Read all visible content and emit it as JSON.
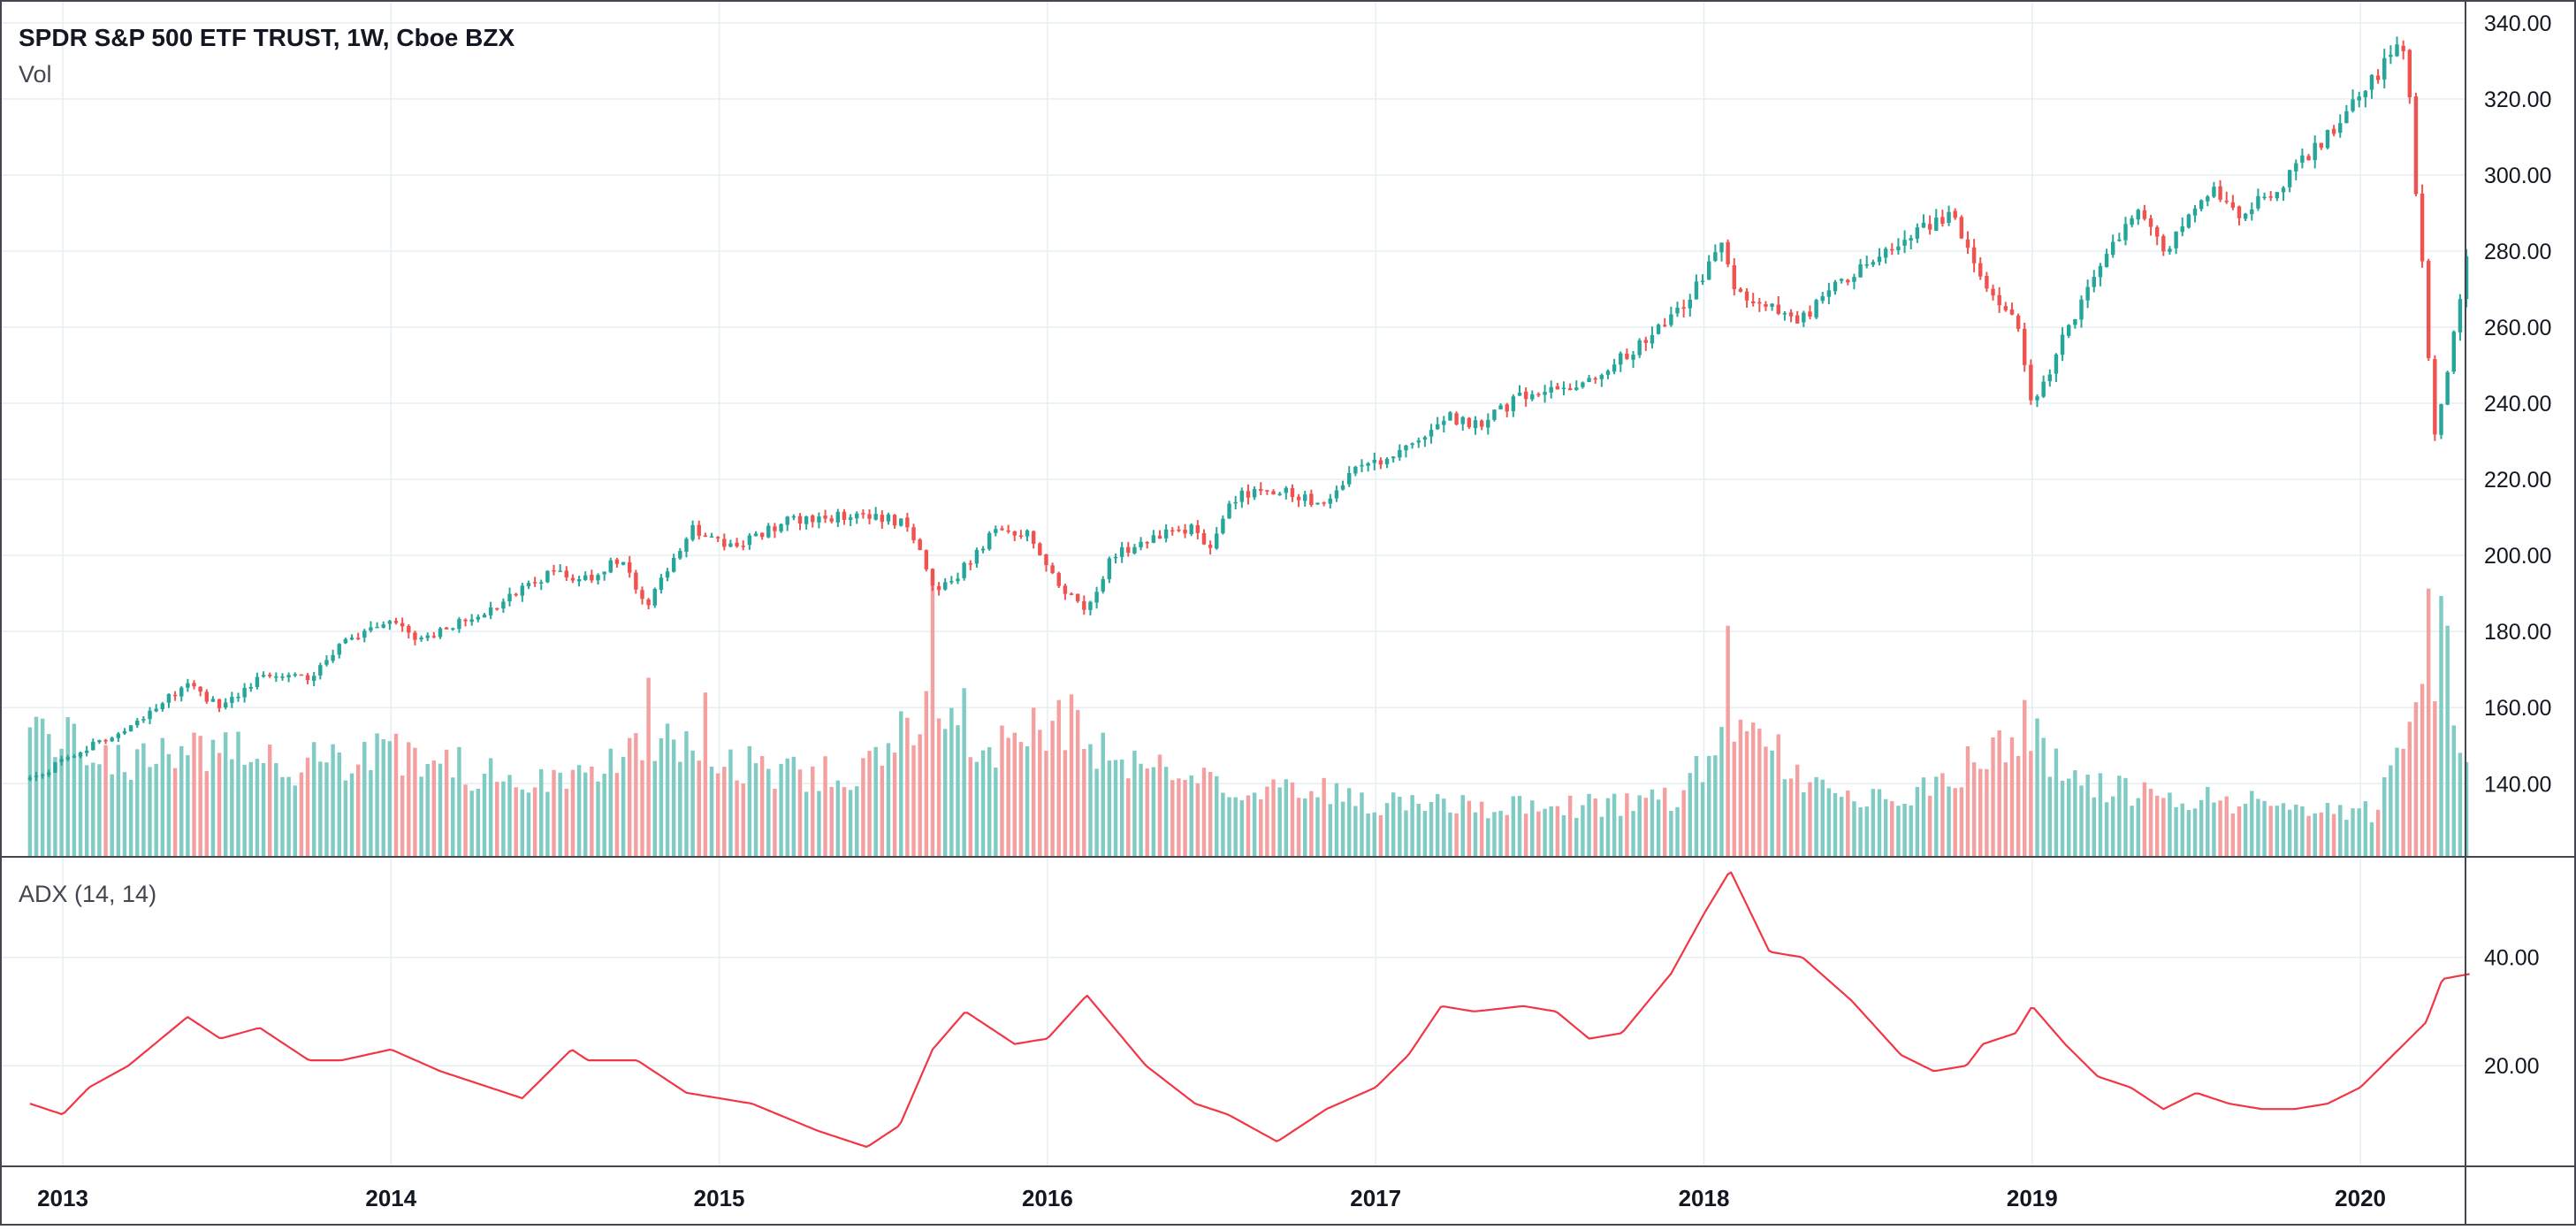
{
  "header": {
    "title": "SPDR S&P 500 ETF TRUST, 1W, Cboe BZX",
    "volume_label": "Vol",
    "indicator_label": "ADX (14, 14)"
  },
  "colors": {
    "up": "#26a69a",
    "down": "#ef5350",
    "vol_up": "#80cbc4",
    "vol_down": "#f4a0a0",
    "adx_line": "#f23645",
    "grid": "#e6eef2",
    "border": "#434651"
  },
  "chart_data": [
    {
      "type": "candlestick",
      "title": "SPDR S&P 500 ETF TRUST, 1W, Cboe BZX",
      "interval": "1W",
      "price_axis": {
        "position": "right",
        "ticks": [
          140,
          160,
          180,
          200,
          220,
          240,
          260,
          280,
          300,
          320,
          340
        ],
        "ylim": [
          121,
          346
        ]
      },
      "time_axis": {
        "ticks": [
          "2013",
          "2014",
          "2015",
          "2016",
          "2017",
          "2018",
          "2019",
          "2020"
        ]
      },
      "grid": true,
      "start_year": 2012.9,
      "weeks_per_year": 52,
      "price_path": [
        [
          2012.9,
          141
        ],
        [
          2013.0,
          146
        ],
        [
          2013.2,
          155
        ],
        [
          2013.38,
          166
        ],
        [
          2013.48,
          160
        ],
        [
          2013.6,
          168
        ],
        [
          2013.75,
          168
        ],
        [
          2013.85,
          177
        ],
        [
          2014.0,
          183
        ],
        [
          2014.08,
          177
        ],
        [
          2014.3,
          186
        ],
        [
          2014.5,
          196
        ],
        [
          2014.58,
          193
        ],
        [
          2014.7,
          199
        ],
        [
          2014.78,
          187
        ],
        [
          2014.92,
          207
        ],
        [
          2015.05,
          202
        ],
        [
          2015.2,
          209
        ],
        [
          2015.45,
          211
        ],
        [
          2015.58,
          208
        ],
        [
          2015.65,
          191
        ],
        [
          2015.72,
          194
        ],
        [
          2015.85,
          208
        ],
        [
          2015.95,
          205
        ],
        [
          2016.05,
          190
        ],
        [
          2016.12,
          186
        ],
        [
          2016.2,
          200
        ],
        [
          2016.35,
          206
        ],
        [
          2016.45,
          207
        ],
        [
          2016.5,
          201
        ],
        [
          2016.55,
          214
        ],
        [
          2016.65,
          218
        ],
        [
          2016.75,
          216
        ],
        [
          2016.85,
          213
        ],
        [
          2016.92,
          222
        ],
        [
          2017.1,
          228
        ],
        [
          2017.2,
          237
        ],
        [
          2017.3,
          234
        ],
        [
          2017.45,
          242
        ],
        [
          2017.55,
          245
        ],
        [
          2017.62,
          244
        ],
        [
          2017.8,
          255
        ],
        [
          2017.95,
          266
        ],
        [
          2018.05,
          283
        ],
        [
          2018.1,
          268
        ],
        [
          2018.2,
          265
        ],
        [
          2018.3,
          262
        ],
        [
          2018.42,
          272
        ],
        [
          2018.6,
          282
        ],
        [
          2018.75,
          290
        ],
        [
          2018.85,
          271
        ],
        [
          2018.95,
          262
        ],
        [
          2019.0,
          238
        ],
        [
          2019.1,
          258
        ],
        [
          2019.2,
          275
        ],
        [
          2019.32,
          292
        ],
        [
          2019.4,
          280
        ],
        [
          2019.55,
          298
        ],
        [
          2019.62,
          289
        ],
        [
          2019.75,
          297
        ],
        [
          2019.92,
          312
        ],
        [
          2020.05,
          326
        ],
        [
          2020.11,
          336
        ],
        [
          2020.14,
          330
        ],
        [
          2020.17,
          296
        ],
        [
          2020.2,
          264
        ],
        [
          2020.22,
          230
        ],
        [
          2020.27,
          250
        ],
        [
          2020.32,
          278
        ],
        [
          2020.34,
          284
        ]
      ],
      "volume_profile": [
        [
          2012.9,
          0.34
        ],
        [
          2013.2,
          0.24
        ],
        [
          2013.45,
          0.28
        ],
        [
          2013.7,
          0.25
        ],
        [
          2014.0,
          0.27
        ],
        [
          2014.3,
          0.22
        ],
        [
          2014.6,
          0.21
        ],
        [
          2014.8,
          0.3
        ],
        [
          2014.95,
          0.26
        ],
        [
          2015.2,
          0.22
        ],
        [
          2015.5,
          0.24
        ],
        [
          2015.65,
          0.45
        ],
        [
          2015.85,
          0.28
        ],
        [
          2016.05,
          0.37
        ],
        [
          2016.2,
          0.26
        ],
        [
          2016.5,
          0.2
        ],
        [
          2016.8,
          0.18
        ],
        [
          2017.0,
          0.14
        ],
        [
          2017.5,
          0.13
        ],
        [
          2017.9,
          0.15
        ],
        [
          2018.1,
          0.34
        ],
        [
          2018.3,
          0.22
        ],
        [
          2018.6,
          0.14
        ],
        [
          2018.8,
          0.24
        ],
        [
          2018.98,
          0.32
        ],
        [
          2019.2,
          0.18
        ],
        [
          2019.6,
          0.15
        ],
        [
          2019.9,
          0.12
        ],
        [
          2020.05,
          0.12
        ],
        [
          2020.15,
          0.36
        ],
        [
          2020.22,
          0.55
        ],
        [
          2020.3,
          0.3
        ],
        [
          2020.34,
          0.23
        ]
      ],
      "volume_spikes": [
        [
          2014.78,
          0.48
        ],
        [
          2014.95,
          0.44
        ],
        [
          2015.65,
          0.75
        ],
        [
          2016.03,
          0.42
        ],
        [
          2018.08,
          0.62
        ],
        [
          2018.98,
          0.42
        ],
        [
          2020.2,
          0.72
        ],
        [
          2020.24,
          0.7
        ],
        [
          2020.27,
          0.62
        ]
      ]
    },
    {
      "type": "line",
      "name": "ADX (14, 14)",
      "price_axis": {
        "position": "right",
        "ticks": [
          20,
          40
        ],
        "ylim": [
          1.6,
          58.2
        ]
      },
      "adx_path": [
        [
          2012.9,
          13
        ],
        [
          2013.0,
          11
        ],
        [
          2013.08,
          16
        ],
        [
          2013.2,
          20
        ],
        [
          2013.38,
          29
        ],
        [
          2013.48,
          25
        ],
        [
          2013.6,
          27
        ],
        [
          2013.75,
          21
        ],
        [
          2013.85,
          21
        ],
        [
          2014.0,
          23
        ],
        [
          2014.15,
          19
        ],
        [
          2014.25,
          17
        ],
        [
          2014.4,
          14
        ],
        [
          2014.55,
          23
        ],
        [
          2014.6,
          21
        ],
        [
          2014.75,
          21
        ],
        [
          2014.9,
          15
        ],
        [
          2015.1,
          13
        ],
        [
          2015.3,
          8
        ],
        [
          2015.45,
          5
        ],
        [
          2015.55,
          9
        ],
        [
          2015.65,
          23
        ],
        [
          2015.75,
          30
        ],
        [
          2015.9,
          24
        ],
        [
          2016.0,
          25
        ],
        [
          2016.12,
          33
        ],
        [
          2016.3,
          20
        ],
        [
          2016.45,
          13
        ],
        [
          2016.55,
          11
        ],
        [
          2016.7,
          6
        ],
        [
          2016.85,
          12
        ],
        [
          2017.0,
          16
        ],
        [
          2017.1,
          22
        ],
        [
          2017.2,
          31
        ],
        [
          2017.3,
          30
        ],
        [
          2017.45,
          31
        ],
        [
          2017.55,
          30
        ],
        [
          2017.65,
          25
        ],
        [
          2017.75,
          26
        ],
        [
          2017.9,
          37
        ],
        [
          2018.0,
          48
        ],
        [
          2018.08,
          56
        ],
        [
          2018.2,
          41
        ],
        [
          2018.3,
          40
        ],
        [
          2018.45,
          32
        ],
        [
          2018.6,
          22
        ],
        [
          2018.7,
          19
        ],
        [
          2018.8,
          20
        ],
        [
          2018.85,
          24
        ],
        [
          2018.95,
          26
        ],
        [
          2019.0,
          31
        ],
        [
          2019.1,
          24
        ],
        [
          2019.2,
          18
        ],
        [
          2019.3,
          16
        ],
        [
          2019.4,
          12
        ],
        [
          2019.5,
          15
        ],
        [
          2019.6,
          13
        ],
        [
          2019.7,
          12
        ],
        [
          2019.8,
          12
        ],
        [
          2019.9,
          13
        ],
        [
          2020.0,
          16
        ],
        [
          2020.1,
          22
        ],
        [
          2020.2,
          28
        ],
        [
          2020.25,
          36
        ],
        [
          2020.34,
          37
        ]
      ]
    }
  ]
}
